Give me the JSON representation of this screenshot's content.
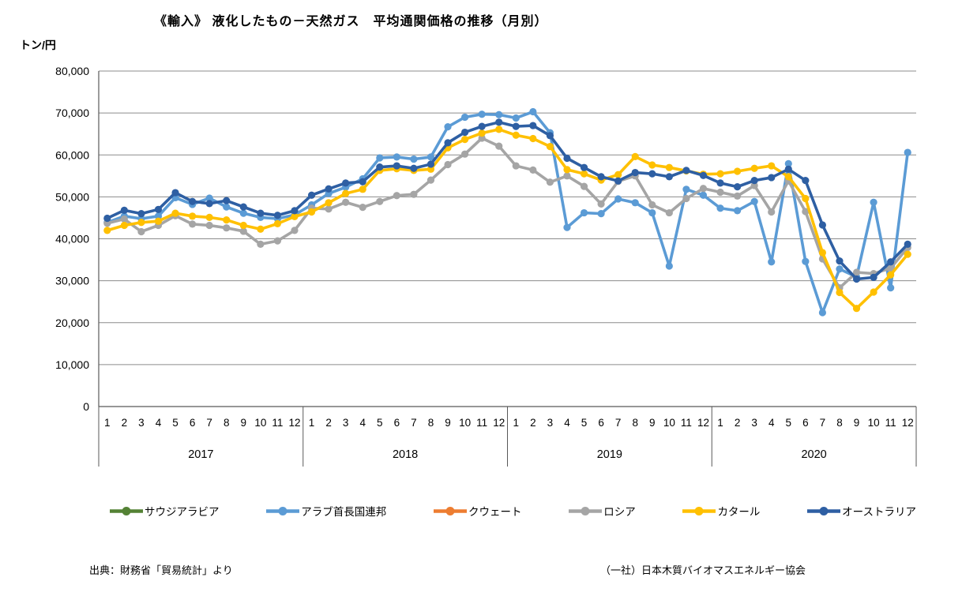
{
  "title": "《輸入》 液化したもの－天然ガス　平均通関価格の推移（月別）",
  "y_axis_unit": "トン/円",
  "footer": {
    "source_left": "出典：財務省「貿易統計」より",
    "source_right": "（一社）日本木質バイオマスエネルギー協会"
  },
  "chart_data": {
    "type": "line",
    "title": "《輸入》 液化したもの－天然ガス　平均通関価格の推移（月別）",
    "xlabel": "",
    "ylabel": "トン/円",
    "ylim": [
      0,
      80000
    ],
    "y_tick_interval": 10000,
    "y_tick_labels": [
      "80,000",
      "70,000",
      "60,000",
      "50,000",
      "40,000",
      "30,000",
      "20,000",
      "10,000",
      "0"
    ],
    "grid": true,
    "legend_position": "bottom",
    "years": [
      "2017",
      "2018",
      "2019",
      "2020"
    ],
    "month_labels": [
      "1",
      "2",
      "3",
      "4",
      "5",
      "6",
      "7",
      "8",
      "9",
      "10",
      "11",
      "12"
    ],
    "series": [
      {
        "key": "saudi-arabia",
        "name": "サウジアラビア",
        "color": "#548235",
        "values": []
      },
      {
        "key": "uae",
        "name": "アラブ首長国連邦",
        "color": "#5B9BD5",
        "values": [
          43900,
          45400,
          44800,
          45400,
          49800,
          48200,
          49700,
          47600,
          46100,
          45100,
          44800,
          45700,
          48100,
          50800,
          52300,
          54300,
          59300,
          59500,
          59000,
          59500,
          66700,
          69000,
          69700,
          69600,
          68800,
          70300,
          65300,
          42700,
          46200,
          46000,
          49500,
          48600,
          46200,
          33500,
          51800,
          50400,
          47300,
          46700,
          48900,
          34500,
          57900,
          34600,
          22400,
          32800,
          30900,
          48700,
          28300,
          60600
        ]
      },
      {
        "key": "kuwait",
        "name": "クウェート",
        "color": "#ED7D31",
        "values": []
      },
      {
        "key": "russia",
        "name": "ロシア",
        "color": "#A5A5A5",
        "values": [
          43700,
          44700,
          41700,
          43200,
          45500,
          43500,
          43200,
          42600,
          41800,
          38700,
          39500,
          42000,
          47300,
          47100,
          48700,
          47500,
          48900,
          50300,
          50600,
          54000,
          57700,
          60200,
          64000,
          62100,
          57400,
          56400,
          53500,
          55000,
          52500,
          48300,
          53700,
          55000,
          48100,
          46200,
          49600,
          52000,
          51100,
          50200,
          52700,
          46400,
          53800,
          46500,
          35200,
          28300,
          32000,
          31700,
          33000,
          37900
        ]
      },
      {
        "key": "qatar",
        "name": "カタール",
        "color": "#FFC000",
        "values": [
          42000,
          43200,
          43900,
          44200,
          46100,
          45400,
          45100,
          44500,
          43200,
          42300,
          43600,
          45300,
          46400,
          48600,
          50800,
          51800,
          56300,
          56700,
          56300,
          56600,
          61700,
          63700,
          65200,
          66100,
          64700,
          63900,
          62000,
          56500,
          55500,
          54000,
          55300,
          59600,
          57600,
          57000,
          56200,
          55400,
          55500,
          56100,
          56800,
          57400,
          54800,
          49600,
          36700,
          27200,
          23400,
          27300,
          31400,
          36300
        ]
      },
      {
        "key": "australia",
        "name": "オーストラリア",
        "color": "#2E5FA3",
        "values": [
          44900,
          46800,
          46000,
          47000,
          51000,
          48900,
          48400,
          49100,
          47600,
          46100,
          45600,
          46700,
          50400,
          51900,
          53300,
          53600,
          57100,
          57400,
          56800,
          57800,
          62900,
          65400,
          66800,
          67800,
          66800,
          67000,
          64600,
          59200,
          57000,
          54800,
          53800,
          55800,
          55500,
          54800,
          56300,
          55100,
          53300,
          52400,
          53900,
          54600,
          56600,
          53900,
          43300,
          34700,
          30400,
          30800,
          34500,
          38700
        ]
      }
    ]
  }
}
